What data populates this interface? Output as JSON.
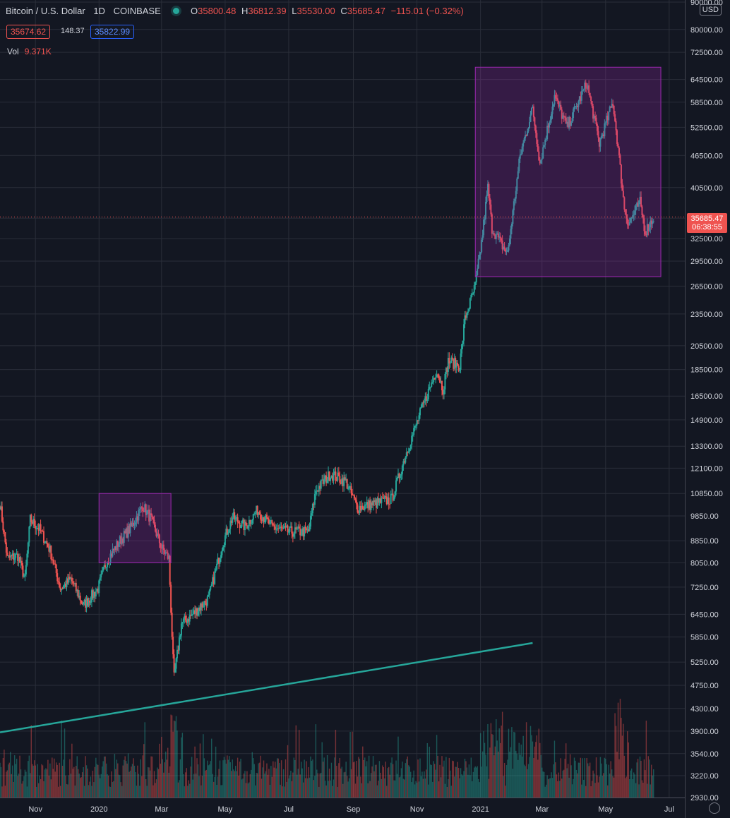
{
  "header": {
    "symbol": "Bitcoin / U.S. Dollar",
    "interval": "1D",
    "exchange": "COINBASE",
    "open_label": "O",
    "open": "35800.48",
    "high_label": "H",
    "high": "36812.39",
    "low_label": "L",
    "low": "35530.00",
    "close_label": "C",
    "close": "35685.47",
    "change": "−115.01 (−0.32%)"
  },
  "quote": {
    "sell": "35674.62",
    "spread": "148.37",
    "buy": "35822.99"
  },
  "volume": {
    "label": "Vol",
    "value": "9.371K"
  },
  "currency_button": "USD",
  "last_price": {
    "price": "35685.47",
    "countdown": "06:38:55"
  },
  "colors": {
    "up": "#26a69a",
    "down": "#ef5350",
    "box": "#9c27b0",
    "trendline": "#26a69a"
  },
  "icons": {
    "status": "live-dot-icon",
    "settings": "gear-icon"
  },
  "chart_data": {
    "type": "candlestick",
    "title": "",
    "y_scale": "log",
    "ylim": [
      2930,
      90000
    ],
    "x_range": [
      "2019-09-28",
      "2021-07-16"
    ],
    "y_ticks": [
      90000,
      80000,
      72500,
      64500,
      58500,
      52500,
      46500,
      40500,
      35500,
      32500,
      29500,
      26500,
      23500,
      20500,
      18500,
      16500,
      14900,
      13300,
      12100,
      10850,
      9850,
      8850,
      8050,
      7250,
      6450,
      5850,
      5250,
      4750,
      4300,
      3900,
      3540,
      3220,
      2930
    ],
    "y_tick_labels": [
      "90000.00",
      "80000.00",
      "72500.00",
      "64500.00",
      "58500.00",
      "52500.00",
      "46500.00",
      "40500.00",
      "35500.00",
      "32500.00",
      "29500.00",
      "26500.00",
      "23500.00",
      "20500.00",
      "18500.00",
      "16500.00",
      "14900.00",
      "13300.00",
      "12100.00",
      "10850.00",
      "9850.00",
      "8850.00",
      "8050.00",
      "7250.00",
      "6450.00",
      "5850.00",
      "5250.00",
      "4750.00",
      "4300.00",
      "3900.00",
      "3540.00",
      "3220.00",
      "2930.00"
    ],
    "x_ticks": [
      {
        "label": "Nov",
        "date": "2019-11-01"
      },
      {
        "label": "2020",
        "date": "2020-01-01"
      },
      {
        "label": "Mar",
        "date": "2020-03-01"
      },
      {
        "label": "May",
        "date": "2020-05-01"
      },
      {
        "label": "Jul",
        "date": "2020-07-01"
      },
      {
        "label": "Sep",
        "date": "2020-09-01"
      },
      {
        "label": "Nov",
        "date": "2020-11-01"
      },
      {
        "label": "2021",
        "date": "2021-01-01"
      },
      {
        "label": "Mar",
        "date": "2021-03-01"
      },
      {
        "label": "May",
        "date": "2021-05-01"
      },
      {
        "label": "Jul",
        "date": "2021-07-01"
      }
    ],
    "price_anchors": [
      [
        "2019-09-28",
        10400
      ],
      [
        "2019-10-05",
        8200
      ],
      [
        "2019-10-15",
        8300
      ],
      [
        "2019-10-22",
        7500
      ],
      [
        "2019-10-27",
        9700
      ],
      [
        "2019-11-05",
        9300
      ],
      [
        "2019-11-15",
        8500
      ],
      [
        "2019-11-25",
        7200
      ],
      [
        "2019-12-05",
        7500
      ],
      [
        "2019-12-17",
        6700
      ],
      [
        "2019-12-31",
        7200
      ],
      [
        "2020-01-08",
        8100
      ],
      [
        "2020-01-20",
        8800
      ],
      [
        "2020-02-01",
        9400
      ],
      [
        "2020-02-12",
        10300
      ],
      [
        "2020-02-20",
        9700
      ],
      [
        "2020-03-01",
        8600
      ],
      [
        "2020-03-08",
        8200
      ],
      [
        "2020-03-12",
        5300
      ],
      [
        "2020-03-13",
        4900
      ],
      [
        "2020-03-20",
        6200
      ],
      [
        "2020-03-31",
        6450
      ],
      [
        "2020-04-15",
        6900
      ],
      [
        "2020-04-29",
        8800
      ],
      [
        "2020-05-08",
        9800
      ],
      [
        "2020-05-20",
        9400
      ],
      [
        "2020-06-01",
        10100
      ],
      [
        "2020-06-15",
        9400
      ],
      [
        "2020-07-01",
        9200
      ],
      [
        "2020-07-20",
        9200
      ],
      [
        "2020-07-27",
        11000
      ],
      [
        "2020-08-10",
        11800
      ],
      [
        "2020-08-25",
        11400
      ],
      [
        "2020-09-05",
        10200
      ],
      [
        "2020-09-23",
        10400
      ],
      [
        "2020-10-08",
        10600
      ],
      [
        "2020-10-21",
        12800
      ],
      [
        "2020-11-05",
        15500
      ],
      [
        "2020-11-20",
        18500
      ],
      [
        "2020-11-26",
        17000
      ],
      [
        "2020-12-01",
        19200
      ],
      [
        "2020-12-12",
        18800
      ],
      [
        "2020-12-17",
        23000
      ],
      [
        "2020-12-27",
        26500
      ],
      [
        "2021-01-02",
        32000
      ],
      [
        "2021-01-08",
        40500
      ],
      [
        "2021-01-12",
        34000
      ],
      [
        "2021-01-22",
        31500
      ],
      [
        "2021-01-27",
        30500
      ],
      [
        "2021-02-08",
        46500
      ],
      [
        "2021-02-20",
        57000
      ],
      [
        "2021-02-27",
        45000
      ],
      [
        "2021-03-13",
        60000
      ],
      [
        "2021-03-25",
        52500
      ],
      [
        "2021-04-13",
        63500
      ],
      [
        "2021-04-25",
        49000
      ],
      [
        "2021-05-08",
        58500
      ],
      [
        "2021-05-12",
        50000
      ],
      [
        "2021-05-19",
        37000
      ],
      [
        "2021-05-23",
        34700
      ],
      [
        "2021-06-03",
        38000
      ],
      [
        "2021-06-08",
        33500
      ],
      [
        "2021-06-16",
        35685
      ]
    ],
    "annotations": [
      {
        "type": "rectangle",
        "from": [
          "2020-01-01",
          10850
        ],
        "to": [
          "2020-03-10",
          8050
        ]
      },
      {
        "type": "rectangle",
        "from": [
          "2020-12-27",
          68000
        ],
        "to": [
          "2021-06-23",
          27600
        ]
      },
      {
        "type": "trendline",
        "from": [
          "2019-09-28",
          3880
        ],
        "to": [
          "2021-02-20",
          5700
        ]
      }
    ],
    "last_price_line": 35685.47
  }
}
